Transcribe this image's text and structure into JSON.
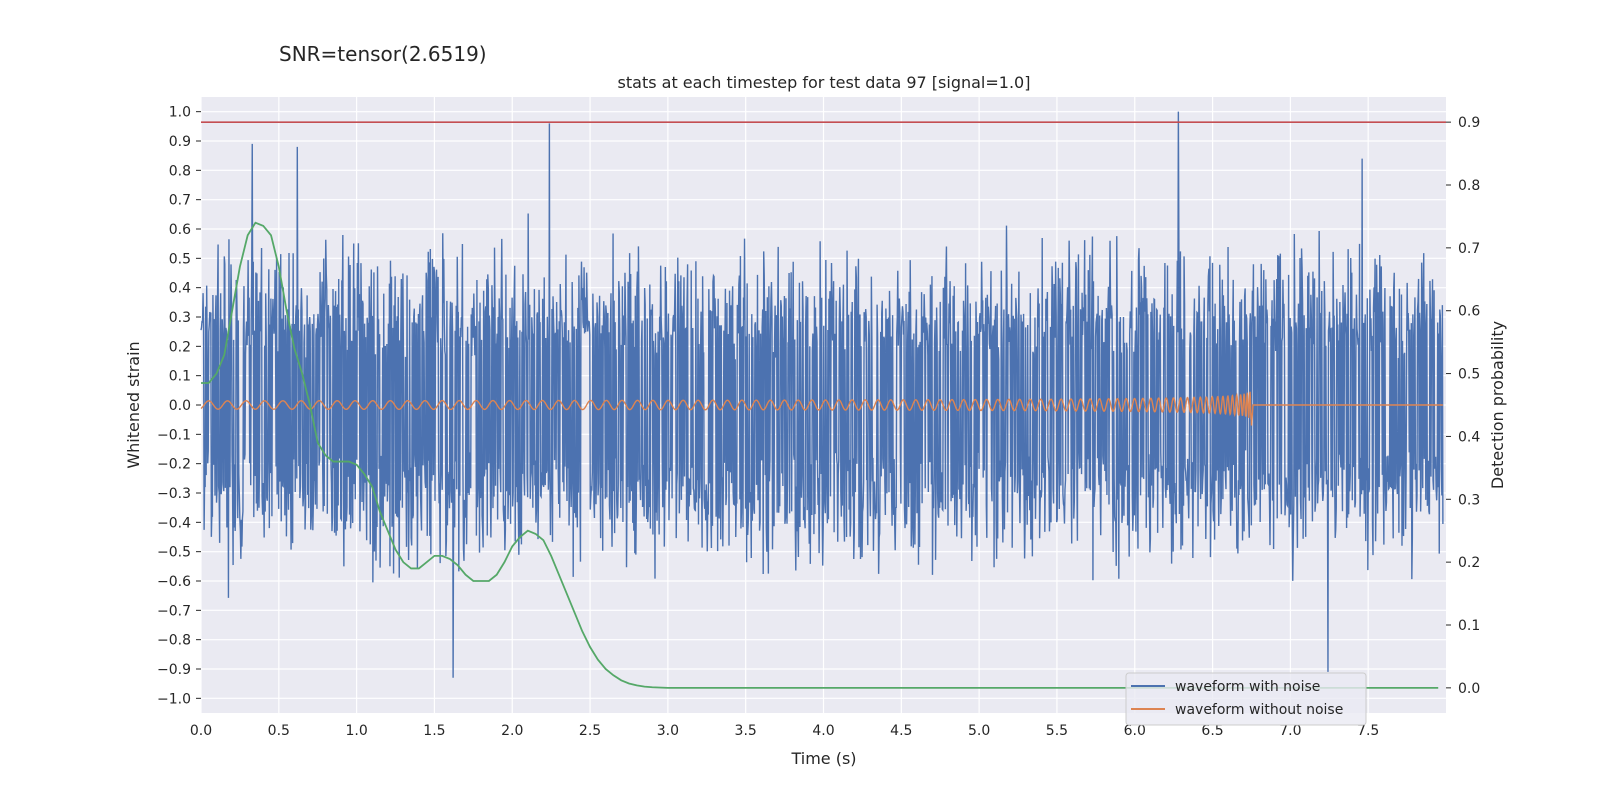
{
  "header": {
    "suptitle": "SNR=tensor(2.6519)"
  },
  "chart_data": {
    "type": "line",
    "title": "stats at each timestep for test data 97 [signal=1.0]",
    "xlabel": "Time (s)",
    "ylabel": "Whitened strain",
    "y2label": "Detection probability",
    "xlim": [
      0.0,
      8.0
    ],
    "ylim": [
      -1.05,
      1.05
    ],
    "y2lim": [
      -0.04,
      0.94
    ],
    "x_ticks": [
      "0.0",
      "0.5",
      "1.0",
      "1.5",
      "2.0",
      "2.5",
      "3.0",
      "3.5",
      "4.0",
      "4.5",
      "5.0",
      "5.5",
      "6.0",
      "6.5",
      "7.0",
      "7.5"
    ],
    "y_ticks": [
      "1.0",
      "0.9",
      "0.8",
      "0.7",
      "0.6",
      "0.5",
      "0.4",
      "0.3",
      "0.2",
      "0.1",
      "0.0",
      "−0.1",
      "−0.2",
      "−0.3",
      "−0.4",
      "−0.5",
      "−0.6",
      "−0.7",
      "−0.8",
      "−0.9",
      "−1.0"
    ],
    "y2_ticks": [
      "0.9",
      "0.8",
      "0.7",
      "0.6",
      "0.5",
      "0.4",
      "0.3",
      "0.2",
      "0.1",
      "0.0"
    ],
    "threshold": {
      "value": 0.9,
      "axis": "right",
      "color": "#c44e52"
    },
    "grid": true,
    "legend": {
      "placement": "lower-right"
    },
    "series": [
      {
        "name": "waveform with noise",
        "axis": "left",
        "color": "#4c72b0",
        "style": "dense-noise",
        "notes_peaks": [
          [
            0.33,
            0.89
          ],
          [
            0.62,
            0.88
          ],
          [
            1.62,
            -0.93
          ],
          [
            2.24,
            0.96
          ],
          [
            6.28,
            1.0
          ],
          [
            7.24,
            -0.91
          ],
          [
            7.46,
            0.84
          ]
        ]
      },
      {
        "name": "waveform without noise",
        "axis": "left",
        "color": "#dd8452",
        "style": "chirp",
        "chirp_end": 6.75,
        "chirp_peak": 0.08
      },
      {
        "name": "",
        "axis": "right",
        "color": "#55a868",
        "style": "line",
        "x": [
          0.0,
          0.05,
          0.1,
          0.15,
          0.2,
          0.25,
          0.3,
          0.35,
          0.4,
          0.45,
          0.5,
          0.55,
          0.6,
          0.65,
          0.7,
          0.75,
          0.8,
          0.85,
          0.9,
          0.95,
          1.0,
          1.05,
          1.1,
          1.15,
          1.2,
          1.25,
          1.3,
          1.35,
          1.4,
          1.45,
          1.5,
          1.55,
          1.6,
          1.65,
          1.7,
          1.75,
          1.8,
          1.85,
          1.9,
          1.95,
          2.0,
          2.05,
          2.1,
          2.15,
          2.2,
          2.25,
          2.3,
          2.35,
          2.4,
          2.45,
          2.5,
          2.55,
          2.6,
          2.65,
          2.7,
          2.75,
          2.8,
          2.85,
          2.9,
          3.0,
          3.2,
          3.5,
          4.0,
          5.0,
          6.0,
          7.0,
          7.95
        ],
        "y": [
          0.485,
          0.485,
          0.5,
          0.53,
          0.6,
          0.67,
          0.72,
          0.74,
          0.735,
          0.72,
          0.67,
          0.6,
          0.54,
          0.5,
          0.45,
          0.39,
          0.37,
          0.36,
          0.36,
          0.36,
          0.355,
          0.34,
          0.32,
          0.28,
          0.25,
          0.22,
          0.2,
          0.19,
          0.19,
          0.2,
          0.21,
          0.21,
          0.205,
          0.195,
          0.18,
          0.17,
          0.17,
          0.17,
          0.18,
          0.2,
          0.225,
          0.24,
          0.25,
          0.245,
          0.235,
          0.21,
          0.18,
          0.15,
          0.12,
          0.09,
          0.065,
          0.045,
          0.03,
          0.02,
          0.012,
          0.007,
          0.004,
          0.002,
          0.001,
          0.0,
          0.0,
          0.0,
          0.0,
          0.0,
          0.0,
          0.0,
          0.0
        ]
      }
    ]
  }
}
